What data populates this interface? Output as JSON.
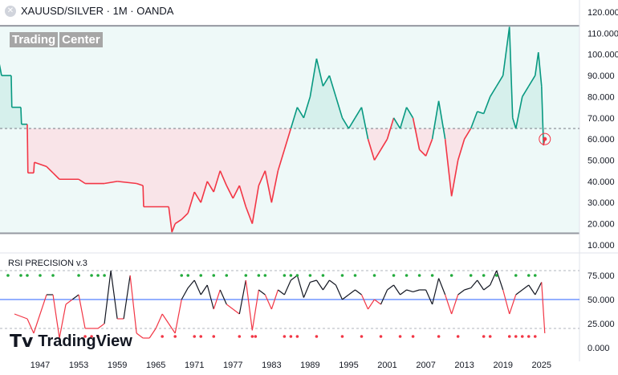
{
  "header": {
    "title": "XAUUSD/SILVER · 1M · OANDA",
    "close_icon": "close-circle-icon"
  },
  "watermark": {
    "part1": "Trading",
    "part2": "Center"
  },
  "indicator": {
    "title": "RSI PRECISION v.3"
  },
  "branding": {
    "name": "TradingView"
  },
  "colors": {
    "up": "#089981",
    "down": "#f23645",
    "rsi_mid": "#2962ff",
    "rsi_line": "#131722",
    "bg_up": "#e6f7f5",
    "bg_down": "#fbe9ec"
  },
  "chart_data": [
    {
      "type": "line",
      "title": "XAUUSD/SILVER",
      "yticks": [
        "120.000",
        "110.000",
        "100.000",
        "90.000",
        "80.000",
        "70.000",
        "60.000",
        "50.000",
        "40.000",
        "30.000",
        "20.000",
        "10.000"
      ],
      "ylim": [
        10,
        120
      ],
      "reference_level": 65,
      "range_high": 113.5,
      "range_low": 15.5,
      "x": [
        1940.5,
        1941,
        1942.5,
        1942.6,
        1944,
        1944.1,
        1945,
        1945.1,
        1946,
        1946.1,
        1948,
        1949,
        1950,
        1953,
        1954,
        1957,
        1959,
        1962,
        1963,
        1963.1,
        1967,
        1967.5,
        1968,
        1969,
        1970,
        1971,
        1972,
        1973,
        1974,
        1975,
        1976,
        1977,
        1978,
        1979,
        1980,
        1981,
        1982,
        1983,
        1984,
        1985,
        1986,
        1987,
        1988,
        1989,
        1990,
        1991,
        1992,
        1993,
        1994,
        1995,
        1996,
        1997,
        1998,
        1999,
        2000,
        2001,
        2002,
        2003,
        2004,
        2005,
        2006,
        2007,
        2008,
        2009,
        2010,
        2011,
        2012,
        2013,
        2014,
        2015,
        2016,
        2017,
        2018,
        2019,
        2020,
        2020.5,
        2021,
        2022,
        2023,
        2024,
        2024.5,
        2025,
        2025.3,
        2025.5
      ],
      "y": [
        98,
        90,
        90,
        75,
        75,
        67,
        67,
        44,
        44,
        49,
        47,
        44,
        41,
        41,
        39,
        39,
        40,
        39,
        38,
        28,
        28,
        16,
        20,
        22,
        25,
        35,
        30,
        40,
        35,
        45,
        38,
        32,
        38,
        28,
        20,
        38,
        45,
        30,
        45,
        55,
        65,
        75,
        70,
        80,
        98,
        85,
        90,
        80,
        70,
        65,
        70,
        75,
        60,
        50,
        55,
        60,
        70,
        65,
        75,
        70,
        55,
        52,
        60,
        78,
        60,
        33,
        50,
        60,
        65,
        73,
        72,
        80,
        85,
        90,
        113,
        70,
        65,
        80,
        85,
        90,
        101,
        85,
        57,
        60
      ]
    },
    {
      "type": "line",
      "title": "RSI PRECISION v.3",
      "yticks": [
        "75.000",
        "50.000",
        "25.000",
        "0.000"
      ],
      "ylim": [
        0,
        100
      ],
      "levels": [
        80,
        50,
        20
      ],
      "xticks": [
        "1947",
        "1953",
        "1959",
        "1965",
        "1971",
        "1977",
        "1983",
        "1989",
        "1995",
        "2001",
        "2007",
        "2013",
        "2019",
        "2025"
      ],
      "x": [
        1943,
        1945,
        1946,
        1948,
        1949,
        1950,
        1951,
        1952,
        1953,
        1954,
        1955,
        1956,
        1957,
        1958,
        1959,
        1960,
        1961,
        1962,
        1963,
        1964,
        1965,
        1966,
        1967,
        1968,
        1969,
        1970,
        1971,
        1972,
        1973,
        1974,
        1975,
        1976,
        1977,
        1978,
        1979,
        1980,
        1981,
        1982,
        1983,
        1984,
        1985,
        1986,
        1987,
        1988,
        1989,
        1990,
        1991,
        1992,
        1993,
        1994,
        1995,
        1996,
        1997,
        1998,
        1999,
        2000,
        2001,
        2002,
        2003,
        2004,
        2005,
        2006,
        2007,
        2008,
        2009,
        2010,
        2011,
        2012,
        2013,
        2014,
        2015,
        2016,
        2017,
        2018,
        2019,
        2020,
        2021,
        2022,
        2023,
        2024,
        2025,
        2025.5
      ],
      "y": [
        35,
        30,
        15,
        55,
        55,
        10,
        45,
        50,
        55,
        20,
        20,
        20,
        25,
        80,
        30,
        30,
        75,
        15,
        10,
        10,
        20,
        35,
        25,
        15,
        50,
        62,
        70,
        55,
        65,
        40,
        60,
        45,
        40,
        35,
        70,
        18,
        60,
        55,
        40,
        60,
        55,
        70,
        75,
        52,
        68,
        70,
        60,
        70,
        65,
        50,
        55,
        60,
        55,
        40,
        50,
        45,
        60,
        65,
        55,
        60,
        58,
        60,
        60,
        45,
        72,
        55,
        35,
        55,
        60,
        62,
        70,
        60,
        65,
        80,
        60,
        35,
        55,
        60,
        65,
        55,
        68,
        15
      ],
      "overbought_dots": [
        1942,
        1944,
        1945,
        1947,
        1949,
        1953,
        1955,
        1956,
        1957,
        1969,
        1970,
        1972,
        1974,
        1976,
        1979,
        1981,
        1982,
        1985,
        1986,
        1987,
        1989,
        1991,
        1994,
        1996,
        1999,
        2002,
        2004,
        2006,
        2008,
        2011,
        2014,
        2016,
        2018,
        2021,
        2023,
        2024
      ],
      "oversold_dots": [
        1954,
        1955,
        1956,
        1966,
        1968,
        1971,
        1972,
        1974,
        1978,
        1980,
        1980.5,
        1985,
        1986,
        1987,
        1990,
        1994,
        1997,
        2000,
        2003,
        2005,
        2009,
        2012,
        2016,
        2017,
        2020,
        2021,
        2022,
        2023,
        2024
      ]
    }
  ]
}
